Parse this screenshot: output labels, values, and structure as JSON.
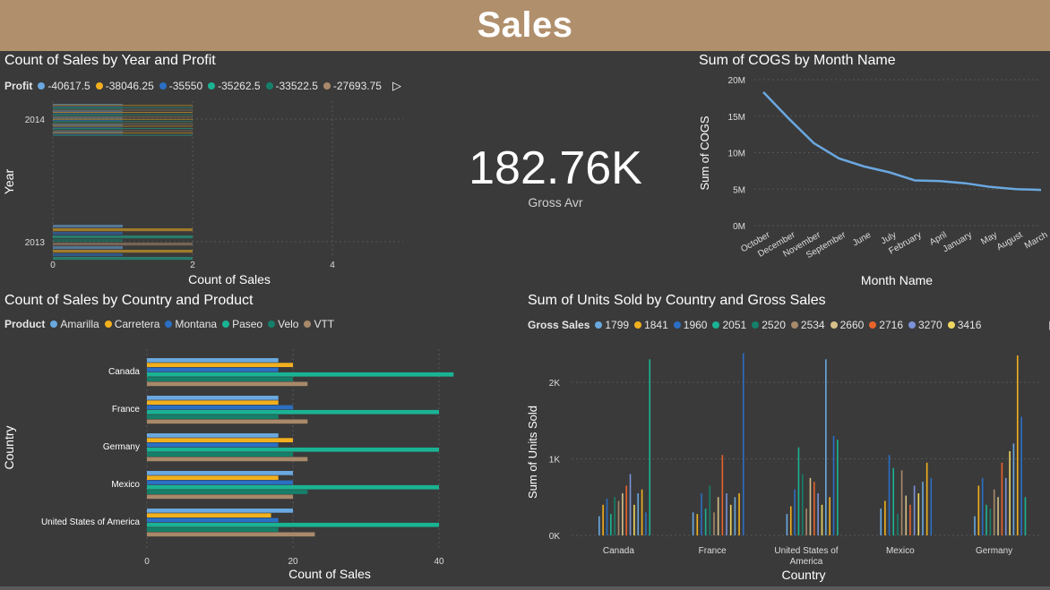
{
  "header": {
    "title": "Sales"
  },
  "kpi": {
    "value": "182.76K",
    "label": "Gross Avr"
  },
  "colors": {
    "background": "#3a3a3a",
    "header": "#b08f6c",
    "line": "#6aa8e0"
  },
  "chart_data": [
    {
      "id": "year_profit",
      "type": "bar",
      "orientation": "horizontal",
      "title": "Count of Sales by Year and Profit",
      "legend_title": "Profit",
      "legend": [
        {
          "name": "-40617.5",
          "color": "#6aa8e0"
        },
        {
          "name": "-38046.25",
          "color": "#f2b01e"
        },
        {
          "name": "-35550",
          "color": "#2a6fc4"
        },
        {
          "name": "-35262.5",
          "color": "#1ab394"
        },
        {
          "name": "-33522.5",
          "color": "#15806a"
        },
        {
          "name": "-27693.75",
          "color": "#a8896a"
        }
      ],
      "categories": [
        "2014",
        "2013"
      ],
      "xlabel": "Count of Sales",
      "ylabel": "Year",
      "xlim": [
        0,
        5
      ],
      "xticks": [
        "0",
        "2",
        "4"
      ],
      "series_per_category": [
        28,
        10
      ],
      "values_per_category": [
        [
          1,
          2
        ],
        [
          1,
          2
        ]
      ]
    },
    {
      "id": "cogs_month",
      "type": "line",
      "title": "Sum of COGS by Month Name",
      "categories": [
        "October",
        "December",
        "November",
        "September",
        "June",
        "July",
        "February",
        "April",
        "January",
        "May",
        "August",
        "March"
      ],
      "values": [
        18.3,
        14.7,
        11.3,
        9.2,
        8.1,
        7.3,
        6.2,
        6.1,
        5.8,
        5.3,
        5.0,
        4.9
      ],
      "ylabel": "Sum of COGS",
      "xlabel": "Month Name",
      "ylim": [
        0,
        20
      ],
      "yticks": [
        "0M",
        "5M",
        "10M",
        "15M",
        "20M"
      ],
      "unit": "M"
    },
    {
      "id": "country_product",
      "type": "bar",
      "orientation": "horizontal",
      "title": "Count of Sales by Country and Product",
      "legend_title": "Product",
      "categories": [
        "Canada",
        "France",
        "Germany",
        "Mexico",
        "United States of America"
      ],
      "series": [
        {
          "name": "Amarilla",
          "color": "#6aa8e0",
          "values": [
            18,
            18,
            18,
            20,
            20
          ]
        },
        {
          "name": "Carretera",
          "color": "#f2b01e",
          "values": [
            20,
            18,
            20,
            18,
            17
          ]
        },
        {
          "name": "Montana",
          "color": "#2a6fc4",
          "values": [
            18,
            20,
            18,
            20,
            18
          ]
        },
        {
          "name": "Paseo",
          "color": "#1ab394",
          "values": [
            42,
            40,
            40,
            40,
            40
          ]
        },
        {
          "name": "Velo",
          "color": "#15806a",
          "values": [
            20,
            18,
            20,
            22,
            18
          ]
        },
        {
          "name": "VTT",
          "color": "#a8896a",
          "values": [
            22,
            22,
            22,
            20,
            23
          ]
        }
      ],
      "xlabel": "Count of Sales",
      "ylabel": "Country",
      "xlim": [
        0,
        45
      ],
      "xticks": [
        "0",
        "20",
        "40"
      ]
    },
    {
      "id": "units_country",
      "type": "bar",
      "title": "Sum of Units Sold by Country and Gross Sales",
      "legend_title": "Gross Sales",
      "legend": [
        {
          "name": "1799",
          "color": "#6aa8e0"
        },
        {
          "name": "1841",
          "color": "#f2b01e"
        },
        {
          "name": "1960",
          "color": "#2a6fc4"
        },
        {
          "name": "2051",
          "color": "#1ab394"
        },
        {
          "name": "2520",
          "color": "#15806a"
        },
        {
          "name": "2534",
          "color": "#a8896a"
        },
        {
          "name": "2660",
          "color": "#d6c08a"
        },
        {
          "name": "2716",
          "color": "#e8632b"
        },
        {
          "name": "3270",
          "color": "#7a92d8"
        },
        {
          "name": "3416",
          "color": "#f0d860"
        }
      ],
      "categories": [
        "Canada",
        "France",
        "United States of America",
        "Mexico",
        "Germany"
      ],
      "category_labels": [
        [
          "Canada"
        ],
        [
          "France"
        ],
        [
          "United States of",
          "America"
        ],
        [
          "Mexico"
        ],
        [
          "Germany"
        ]
      ],
      "ylabel": "Sum of Units Sold",
      "xlabel": "Country",
      "ylim": [
        0,
        2400
      ],
      "yticks": [
        "0K",
        "1K",
        "2K"
      ],
      "values": [
        [
          250,
          400,
          480,
          280,
          500,
          450,
          550,
          650,
          800,
          400,
          550,
          600,
          300,
          2300
        ],
        [
          300,
          280,
          550,
          350,
          650,
          300,
          500,
          1050,
          550,
          400,
          500,
          550,
          2380
        ],
        [
          280,
          380,
          600,
          1150,
          800,
          350,
          750,
          700,
          550,
          400,
          2300,
          500,
          1300,
          1250
        ],
        [
          350,
          450,
          1050,
          880,
          280,
          850,
          520,
          400,
          650,
          550,
          700,
          950,
          750
        ],
        [
          250,
          650,
          750,
          400,
          350,
          600,
          500,
          950,
          750,
          1100,
          1200,
          2350,
          1550,
          500
        ]
      ]
    }
  ]
}
